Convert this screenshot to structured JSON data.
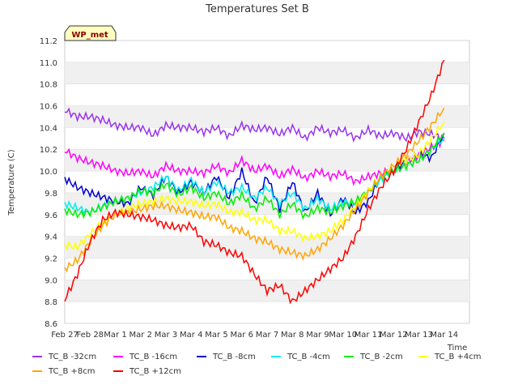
{
  "chart_data": {
    "type": "line",
    "title": "Temperatures Set B",
    "xlabel": "Time",
    "ylabel": "Temperature (C)",
    "badge": "WP_met",
    "ylim": [
      8.6,
      11.2
    ],
    "yticks": [
      8.6,
      8.8,
      9.0,
      9.2,
      9.4,
      9.6,
      9.8,
      10.0,
      10.2,
      10.4,
      10.6,
      10.8,
      11.0,
      11.2
    ],
    "ytick_labels": [
      "8.6",
      "8.8",
      "9.0",
      "9.2",
      "9.4",
      "9.6",
      "9.8",
      "10.0",
      "10.2",
      "10.4",
      "10.6",
      "10.8",
      "11.0",
      "11.2"
    ],
    "xlim": [
      0,
      16
    ],
    "xticks": [
      0,
      1,
      2,
      3,
      4,
      5,
      6,
      7,
      8,
      9,
      10,
      11,
      12,
      13,
      14,
      15
    ],
    "xtick_labels": [
      "Feb 27",
      "Feb 28",
      "Mar 1",
      "Mar 2",
      "Mar 3",
      "Mar 4",
      "Mar 5",
      "Mar 6",
      "Mar 7",
      "Mar 8",
      "Mar 9",
      "Mar 10",
      "Mar 11",
      "Mar 12",
      "Mar 13",
      "Mar 14"
    ],
    "grid": "horizontal-bands",
    "legend_placement": "bottom",
    "x": [
      0,
      0.5,
      1,
      1.5,
      2,
      2.5,
      3,
      3.5,
      4,
      4.5,
      5,
      5.5,
      6,
      6.5,
      7,
      7.5,
      8,
      8.5,
      9,
      9.5,
      10,
      10.5,
      11,
      11.5,
      12,
      12.5,
      13,
      13.5,
      14,
      14.5,
      15
    ],
    "series": [
      {
        "name": "TC_B -32cm",
        "color": "#9933ee",
        "values": [
          10.56,
          10.5,
          10.5,
          10.47,
          10.42,
          10.4,
          10.4,
          10.33,
          10.42,
          10.4,
          10.4,
          10.36,
          10.4,
          10.32,
          10.42,
          10.38,
          10.4,
          10.34,
          10.4,
          10.3,
          10.4,
          10.35,
          10.38,
          10.3,
          10.38,
          10.32,
          10.35,
          10.3,
          10.36,
          10.34,
          10.3
        ]
      },
      {
        "name": "TC_B -16cm",
        "color": "#ff00ff",
        "values": [
          10.19,
          10.12,
          10.08,
          10.05,
          10.0,
          9.98,
          10.0,
          9.95,
          10.05,
          10.0,
          10.0,
          9.98,
          10.05,
          9.98,
          10.1,
          10.0,
          10.05,
          9.95,
          10.02,
          9.93,
          10.0,
          9.95,
          9.98,
          9.9,
          9.95,
          9.98,
          10.0,
          10.08,
          10.15,
          10.22,
          10.28
        ]
      },
      {
        "name": "TC_B -8cm",
        "color": "#0000cc",
        "values": [
          9.93,
          9.85,
          9.8,
          9.76,
          9.72,
          9.7,
          9.85,
          9.78,
          9.95,
          9.8,
          9.9,
          9.8,
          9.95,
          9.75,
          10.0,
          9.7,
          9.95,
          9.65,
          9.9,
          9.62,
          9.8,
          9.6,
          9.75,
          9.62,
          9.72,
          9.95,
          10.0,
          10.1,
          10.15,
          10.12,
          10.35
        ]
      },
      {
        "name": "TC_B -4cm",
        "color": "#00eeee",
        "values": [
          9.7,
          9.66,
          9.62,
          9.68,
          9.72,
          9.75,
          9.8,
          9.85,
          9.95,
          9.82,
          9.92,
          9.8,
          9.9,
          9.8,
          9.85,
          9.75,
          9.85,
          9.7,
          9.8,
          9.65,
          9.75,
          9.65,
          9.72,
          9.7,
          9.8,
          9.92,
          10.0,
          10.05,
          10.1,
          10.2,
          10.3
        ]
      },
      {
        "name": "TC_B -2cm",
        "color": "#00ee00",
        "values": [
          9.64,
          9.6,
          9.62,
          9.67,
          9.72,
          9.75,
          9.82,
          9.8,
          9.88,
          9.78,
          9.85,
          9.75,
          9.8,
          9.7,
          9.78,
          9.65,
          9.75,
          9.6,
          9.7,
          9.58,
          9.66,
          9.62,
          9.68,
          9.72,
          9.82,
          9.95,
          10.0,
          10.05,
          10.1,
          10.2,
          10.35
        ]
      },
      {
        "name": "TC_B +4cm",
        "color": "#ffff00",
        "values": [
          9.32,
          9.3,
          9.42,
          9.52,
          9.6,
          9.66,
          9.7,
          9.72,
          9.75,
          9.72,
          9.72,
          9.68,
          9.7,
          9.62,
          9.62,
          9.55,
          9.55,
          9.45,
          9.45,
          9.38,
          9.4,
          9.45,
          9.55,
          9.68,
          9.82,
          9.95,
          10.05,
          10.1,
          10.15,
          10.3,
          10.45
        ]
      },
      {
        "name": "TC_B +8cm",
        "color": "#ffa500",
        "values": [
          9.1,
          9.18,
          9.35,
          9.5,
          9.6,
          9.62,
          9.65,
          9.68,
          9.68,
          9.64,
          9.62,
          9.58,
          9.58,
          9.48,
          9.45,
          9.38,
          9.35,
          9.28,
          9.25,
          9.22,
          9.28,
          9.38,
          9.5,
          9.65,
          9.8,
          9.95,
          10.05,
          10.15,
          10.28,
          10.42,
          10.58
        ]
      },
      {
        "name": "TC_B +12cm",
        "color": "#ff0000",
        "values": [
          8.82,
          9.05,
          9.35,
          9.55,
          9.62,
          9.6,
          9.58,
          9.55,
          9.5,
          9.48,
          9.5,
          9.35,
          9.32,
          9.25,
          9.22,
          9.05,
          8.9,
          8.95,
          8.8,
          8.9,
          9.0,
          9.1,
          9.2,
          9.4,
          9.65,
          9.85,
          10.0,
          10.2,
          10.45,
          10.7,
          11.02
        ]
      }
    ]
  }
}
